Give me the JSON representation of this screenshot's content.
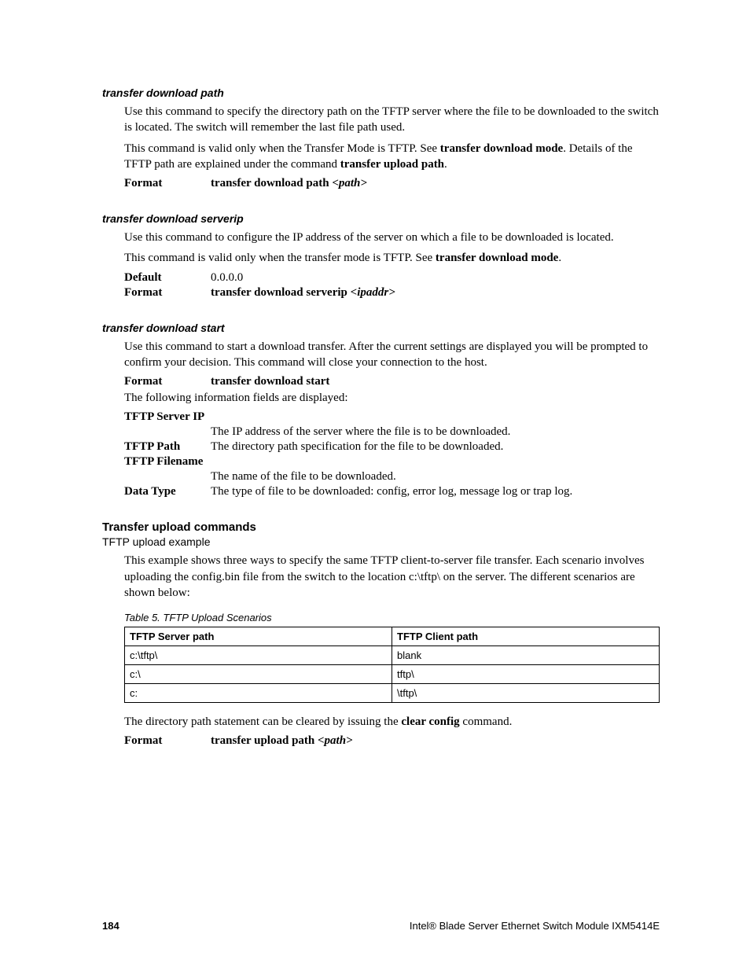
{
  "footer": {
    "page": "184",
    "right": "Intel® Blade Server Ethernet Switch Module IXM5414E"
  },
  "s1": {
    "title": "transfer download path",
    "p1": "Use this command to specify the directory path on the TFTP server where the file to be downloaded to the switch is located. The switch will remember the last file path used.",
    "p2a": "This command is valid only when the Transfer Mode is TFTP. See ",
    "p2b": "transfer download mode",
    "p2c": ". Details of the TFTP path are explained under the command ",
    "p2d": "transfer upload path",
    "p2e": ".",
    "fmt_k": "Format",
    "fmt_v1": "transfer download path ",
    "fmt_v2": "<path>"
  },
  "s2": {
    "title": "transfer download serverip",
    "p1": "Use this command to configure the IP address of the server on which a file to be downloaded is located.",
    "p2a": "This command is valid only when the transfer mode is TFTP. See ",
    "p2b": "transfer download mode",
    "p2c": ".",
    "def_k": "Default",
    "def_v": "0.0.0.0",
    "fmt_k": "Format",
    "fmt_v1": "transfer download serverip ",
    "fmt_v2": "<ipaddr>"
  },
  "s3": {
    "title": "transfer download start",
    "p1": "Use this command to start a download transfer. After the current settings are displayed you will be prompted to confirm your decision. This command will close your connection to the host.",
    "fmt_k": "Format",
    "fmt_v": "transfer download start",
    "disp": "The following information fields are displayed:",
    "f1k": "TFTP Server IP",
    "f1v": "The IP address of the server where the file is to be downloaded.",
    "f2k": "TFTP Path",
    "f2v": "The directory path specification for the file to be downloaded.",
    "f3k": "TFTP Filename",
    "f3v": "The name of the file to be downloaded.",
    "f4k": "Data Type",
    "f4v": "The type of file to be downloaded: config, error log, message log or trap log."
  },
  "upload": {
    "h2": "Transfer upload commands",
    "sub": "TFTP upload example",
    "p1": "This example shows three ways to specify the same TFTP client-to-server file transfer. Each scenario involves uploading the config.bin file from the switch to the location c:\\tftp\\ on the server. The different scenarios are shown below:",
    "caption": "Table 5. TFTP Upload Scenarios",
    "th1": "TFTP Server path",
    "th2": "TFTP Client path",
    "r1c1": "c:\\tftp\\",
    "r1c2": "blank",
    "r2c1": "c:\\",
    "r2c2": "tftp\\",
    "r3c1": "c:",
    "r3c2": "\\tftp\\",
    "p2a": "The directory path statement can be cleared by issuing the ",
    "p2b": "clear config",
    "p2c": " command.",
    "fmt_k": "Format",
    "fmt_v1": "transfer upload path ",
    "fmt_v2": "<path>"
  }
}
